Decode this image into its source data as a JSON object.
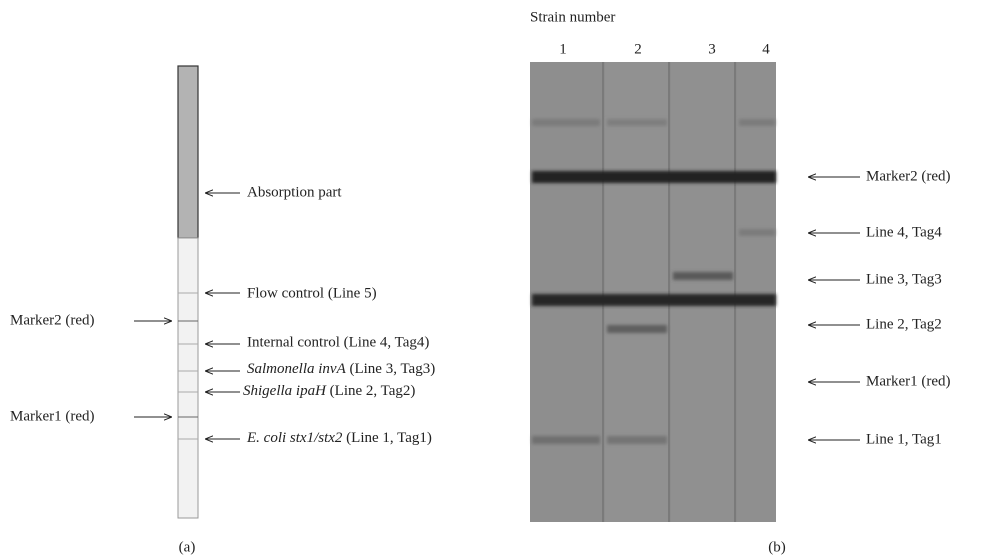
{
  "panel_a": {
    "caption": "(a)",
    "strip_labels": [
      {
        "text": "Absorption part"
      },
      {
        "text": "Flow control (Line 5)"
      },
      {
        "text": "Internal control (Line 4, Tag4)"
      },
      {
        "italic": "Salmonella invA",
        "text": " (Line 3, Tag3)"
      },
      {
        "italic": "Shigella ipaH",
        "text": " (Line 2, Tag2)"
      },
      {
        "italic": "E. coli stx1/stx2",
        "text": " (Line 1, Tag1)"
      }
    ],
    "marker_labels": [
      "Marker2 (red)",
      "Marker1 (red)"
    ]
  },
  "panel_b": {
    "caption": "(b)",
    "axis_title": "Strain number",
    "lanes": [
      "1",
      "2",
      "3",
      "4"
    ],
    "band_labels": [
      "Marker2 (red)",
      "Line 4, Tag4",
      "Line 3, Tag3",
      "Line 2, Tag2",
      "Marker1 (red)",
      "Line 1, Tag1"
    ]
  }
}
